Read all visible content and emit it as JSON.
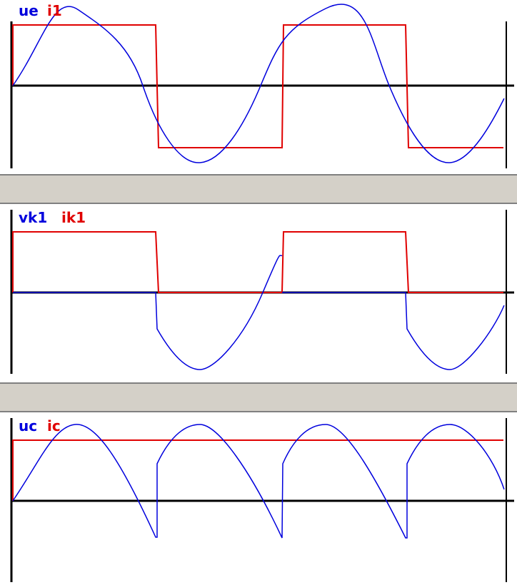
{
  "panels": [
    {
      "id": "panel-1",
      "labels": {
        "blue": "ue",
        "red": "i1"
      },
      "colors": {
        "blue": "#0000dd",
        "red": "#e00000",
        "axis": "#000000"
      }
    },
    {
      "id": "panel-2",
      "labels": {
        "blue": "vk1",
        "red": "ik1"
      },
      "colors": {
        "blue": "#0000dd",
        "red": "#e00000",
        "axis": "#000000"
      }
    },
    {
      "id": "panel-3",
      "labels": {
        "blue": "uc",
        "red": "ic"
      },
      "colors": {
        "blue": "#0000dd",
        "red": "#e00000",
        "axis": "#000000"
      }
    }
  ]
}
